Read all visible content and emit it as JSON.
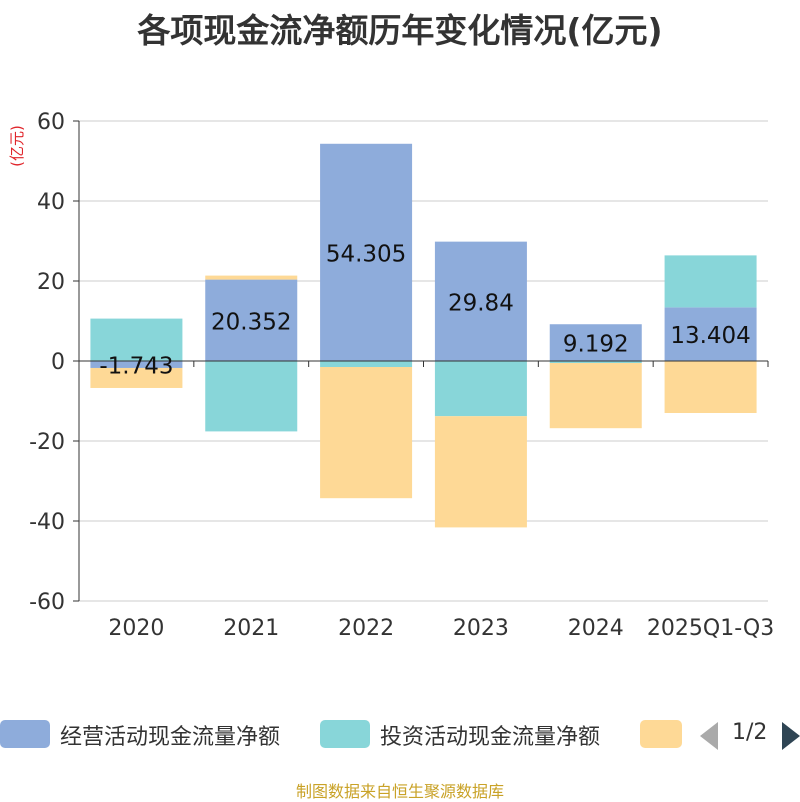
{
  "chart_data": {
    "type": "bar",
    "stacked": true,
    "title": "各项现金流净额历年变化情况(亿元)",
    "ylabel": "(亿元)",
    "ylim": [
      -60,
      60
    ],
    "yticks": [
      -60,
      -40,
      -20,
      0,
      20,
      40,
      60
    ],
    "categories": [
      "2020",
      "2021",
      "2022",
      "2023",
      "2024",
      "2025Q1-Q3"
    ],
    "series": [
      {
        "name": "经营活动现金流量净额",
        "color": "#8eacdb",
        "values": [
          -1.743,
          20.352,
          54.305,
          29.84,
          9.192,
          13.404
        ],
        "labels": [
          "-1.743",
          "20.352",
          "54.305",
          "29.84",
          "9.192",
          "13.404"
        ]
      },
      {
        "name": "投资活动现金流量净额",
        "color": "#88d6d9",
        "values": [
          10.6,
          -17.6,
          -1.5,
          -13.8,
          -0.5,
          13.0
        ]
      },
      {
        "name": "",
        "color": "#fed996",
        "values": [
          -5.0,
          1.0,
          -32.8,
          -27.8,
          -16.3,
          -13.0
        ]
      }
    ],
    "legend": {
      "page": "1/2"
    }
  },
  "source": "制图数据来自恒生聚源数据库"
}
